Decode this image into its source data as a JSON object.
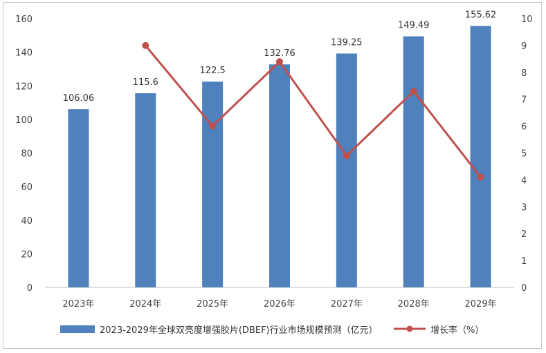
{
  "chart_data": {
    "type": "bar",
    "categories": [
      "2023年",
      "2024年",
      "2025年",
      "2026年",
      "2027年",
      "2028年",
      "2029年"
    ],
    "series": [
      {
        "name": "2023-2029年全球双亮度增强胶片(DBEF)行业市场规模预测（亿元）",
        "type": "bar",
        "axis": "left",
        "color": "#4f81bd",
        "values": [
          106.06,
          115.6,
          122.5,
          132.76,
          139.25,
          149.49,
          155.62
        ],
        "labels": [
          "106.06",
          "115.6",
          "122.5",
          "132.76",
          "139.25",
          "149.49",
          "155.62"
        ]
      },
      {
        "name": "增长率（%）",
        "type": "line",
        "axis": "right",
        "color": "#c0504d",
        "values": [
          null,
          9.0,
          6.0,
          8.4,
          4.9,
          7.3,
          4.1
        ]
      }
    ],
    "ylim_left": [
      0,
      160
    ],
    "yticks_left": [
      0,
      20,
      40,
      60,
      80,
      100,
      120,
      140,
      160
    ],
    "ylim_right": [
      0,
      10
    ],
    "yticks_right": [
      0,
      1,
      2,
      3,
      4,
      5,
      6,
      7,
      8,
      9,
      10
    ],
    "legend_position": "bottom",
    "grid": false
  }
}
